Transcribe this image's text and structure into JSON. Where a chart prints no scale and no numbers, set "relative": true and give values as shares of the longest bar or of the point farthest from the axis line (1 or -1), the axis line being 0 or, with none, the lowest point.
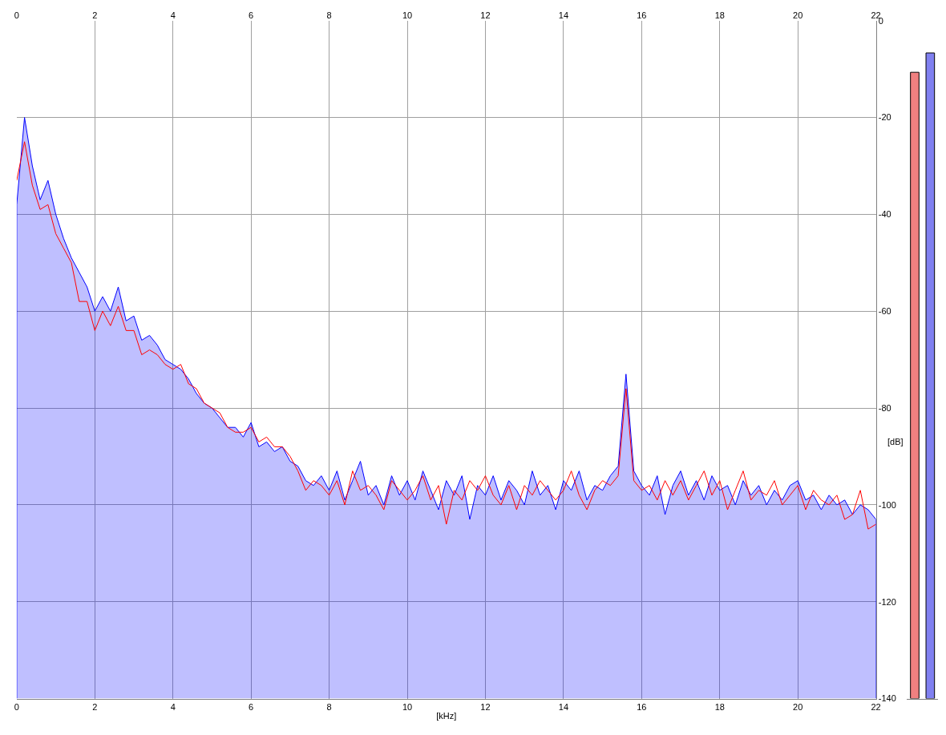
{
  "chart_data": [
    {
      "type": "line",
      "xlabel": "[kHz]",
      "ylabel": "[dB]",
      "x": [
        0,
        0.2,
        0.4,
        0.6,
        0.8,
        1.0,
        1.2,
        1.4,
        1.6,
        1.8,
        2.0,
        2.2,
        2.4,
        2.6,
        2.8,
        3.0,
        3.2,
        3.4,
        3.6,
        3.8,
        4.0,
        4.2,
        4.4,
        4.6,
        4.8,
        5.0,
        5.2,
        5.4,
        5.6,
        5.8,
        6.0,
        6.2,
        6.4,
        6.6,
        6.8,
        7.0,
        7.2,
        7.4,
        7.6,
        7.8,
        8.0,
        8.2,
        8.4,
        8.6,
        8.8,
        9.0,
        9.2,
        9.4,
        9.6,
        9.8,
        10.0,
        10.2,
        10.4,
        10.6,
        10.8,
        11.0,
        11.2,
        11.4,
        11.6,
        11.8,
        12.0,
        12.2,
        12.4,
        12.6,
        12.8,
        13.0,
        13.2,
        13.4,
        13.6,
        13.8,
        14.0,
        14.2,
        14.4,
        14.6,
        14.8,
        15.0,
        15.2,
        15.4,
        15.6,
        15.8,
        16.0,
        16.2,
        16.4,
        16.6,
        16.8,
        17.0,
        17.2,
        17.4,
        17.6,
        17.8,
        18.0,
        18.2,
        18.4,
        18.6,
        18.8,
        19.0,
        19.2,
        19.4,
        19.6,
        19.8,
        20.0,
        20.2,
        20.4,
        20.6,
        20.8,
        21.0,
        21.2,
        21.4,
        21.6,
        21.8,
        22.0
      ],
      "series": [
        {
          "color": "#ff0000",
          "values": [
            -33,
            -25,
            -34,
            -39,
            -38,
            -44,
            -47,
            -50,
            -58,
            -58,
            -64,
            -60,
            -63,
            -59,
            -64,
            -64,
            -69,
            -68,
            -69,
            -71,
            -72,
            -71,
            -75,
            -76,
            -79,
            -80,
            -81,
            -84,
            -85,
            -85,
            -84,
            -87,
            -86,
            -88,
            -88,
            -90,
            -93,
            -97,
            -95,
            -96,
            -98,
            -95,
            -100,
            -93,
            -97,
            -96,
            -98,
            -101,
            -95,
            -97,
            -99,
            -97,
            -94,
            -99,
            -96,
            -104,
            -97,
            -99,
            -95,
            -97,
            -94,
            -98,
            -100,
            -96,
            -101,
            -96,
            -98,
            -95,
            -97,
            -99,
            -97,
            -93,
            -98,
            -101,
            -97,
            -95,
            -96,
            -94,
            -76,
            -95,
            -97,
            -96,
            -99,
            -95,
            -98,
            -95,
            -99,
            -96,
            -93,
            -98,
            -95,
            -101,
            -97,
            -93,
            -99,
            -97,
            -98,
            -95,
            -100,
            -98,
            -96,
            -101,
            -97,
            -99,
            -100,
            -98,
            -103,
            -102,
            -97,
            -105,
            -104
          ]
        },
        {
          "color": "#0000ff",
          "type": "area",
          "x": [
            0,
            0,
            0.2,
            0.4,
            0.6,
            0.8,
            1.0,
            1.2,
            1.4,
            1.6,
            1.8,
            2.0,
            2.2,
            2.4,
            2.6,
            2.8,
            3.0,
            3.2,
            3.4,
            3.6,
            3.8,
            4.0,
            4.2,
            4.4,
            4.6,
            4.8,
            5.0,
            5.2,
            5.4,
            5.6,
            5.8,
            6.0,
            6.2,
            6.4,
            6.6,
            6.8,
            7.0,
            7.2,
            7.4,
            7.6,
            7.8,
            8.0,
            8.2,
            8.4,
            8.6,
            8.8,
            9.0,
            9.2,
            9.4,
            9.6,
            9.8,
            10.0,
            10.2,
            10.4,
            10.6,
            10.8,
            11.0,
            11.2,
            11.4,
            11.6,
            11.8,
            12.0,
            12.2,
            12.4,
            12.6,
            12.8,
            13.0,
            13.2,
            13.4,
            13.6,
            13.8,
            14.0,
            14.2,
            14.4,
            14.6,
            14.8,
            15.0,
            15.2,
            15.4,
            15.6,
            15.8,
            16.0,
            16.2,
            16.4,
            16.6,
            16.8,
            17.0,
            17.2,
            17.4,
            17.6,
            17.8,
            18.0,
            18.2,
            18.4,
            18.6,
            18.8,
            19.0,
            19.2,
            19.4,
            19.6,
            19.8,
            20.0,
            20.2,
            20.4,
            20.6,
            20.8,
            21.0,
            21.2,
            21.4,
            21.6,
            21.8,
            22.0,
            22.0
          ],
          "values": [
            -140,
            -38,
            -20,
            -30,
            -37,
            -33,
            -40,
            -45,
            -49,
            -52,
            -55,
            -60,
            -57,
            -60,
            -55,
            -62,
            -61,
            -66,
            -65,
            -67,
            -70,
            -71,
            -72,
            -74,
            -77,
            -79,
            -80,
            -82,
            -84,
            -84,
            -86,
            -83,
            -88,
            -87,
            -89,
            -88,
            -91,
            -92,
            -95,
            -96,
            -94,
            -97,
            -93,
            -99,
            -95,
            -91,
            -98,
            -96,
            -100,
            -94,
            -98,
            -95,
            -99,
            -93,
            -97,
            -101,
            -95,
            -98,
            -94,
            -103,
            -96,
            -98,
            -94,
            -99,
            -95,
            -97,
            -100,
            -93,
            -98,
            -96,
            -101,
            -95,
            -97,
            -93,
            -99,
            -96,
            -97,
            -94,
            -92,
            -73,
            -93,
            -96,
            -98,
            -94,
            -102,
            -96,
            -93,
            -98,
            -95,
            -99,
            -94,
            -97,
            -96,
            -100,
            -95,
            -98,
            -96,
            -100,
            -97,
            -99,
            -96,
            -95,
            -99,
            -98,
            -101,
            -98,
            -100,
            -99,
            -102,
            -100,
            -101,
            -103,
            -140
          ]
        }
      ],
      "xlim": [
        0,
        22
      ],
      "xticks": [
        0,
        2,
        4,
        6,
        8,
        10,
        12,
        14,
        16,
        18,
        20,
        22
      ],
      "x2lim": [
        0,
        22
      ],
      "x2ticks": [
        0,
        2,
        4,
        6,
        8,
        10,
        12,
        14,
        16,
        18,
        20,
        22
      ],
      "ylim": [
        -140,
        0
      ],
      "yticks": [
        -140,
        -120,
        -100,
        -80,
        -60,
        -40,
        -20,
        0
      ],
      "grid": true
    },
    {
      "type": "bar",
      "categories": [
        null,
        null
      ],
      "values": [
        0.97,
        1
      ],
      "colors": [
        "#f08080",
        "#8080f0"
      ],
      "relative": true
    }
  ]
}
